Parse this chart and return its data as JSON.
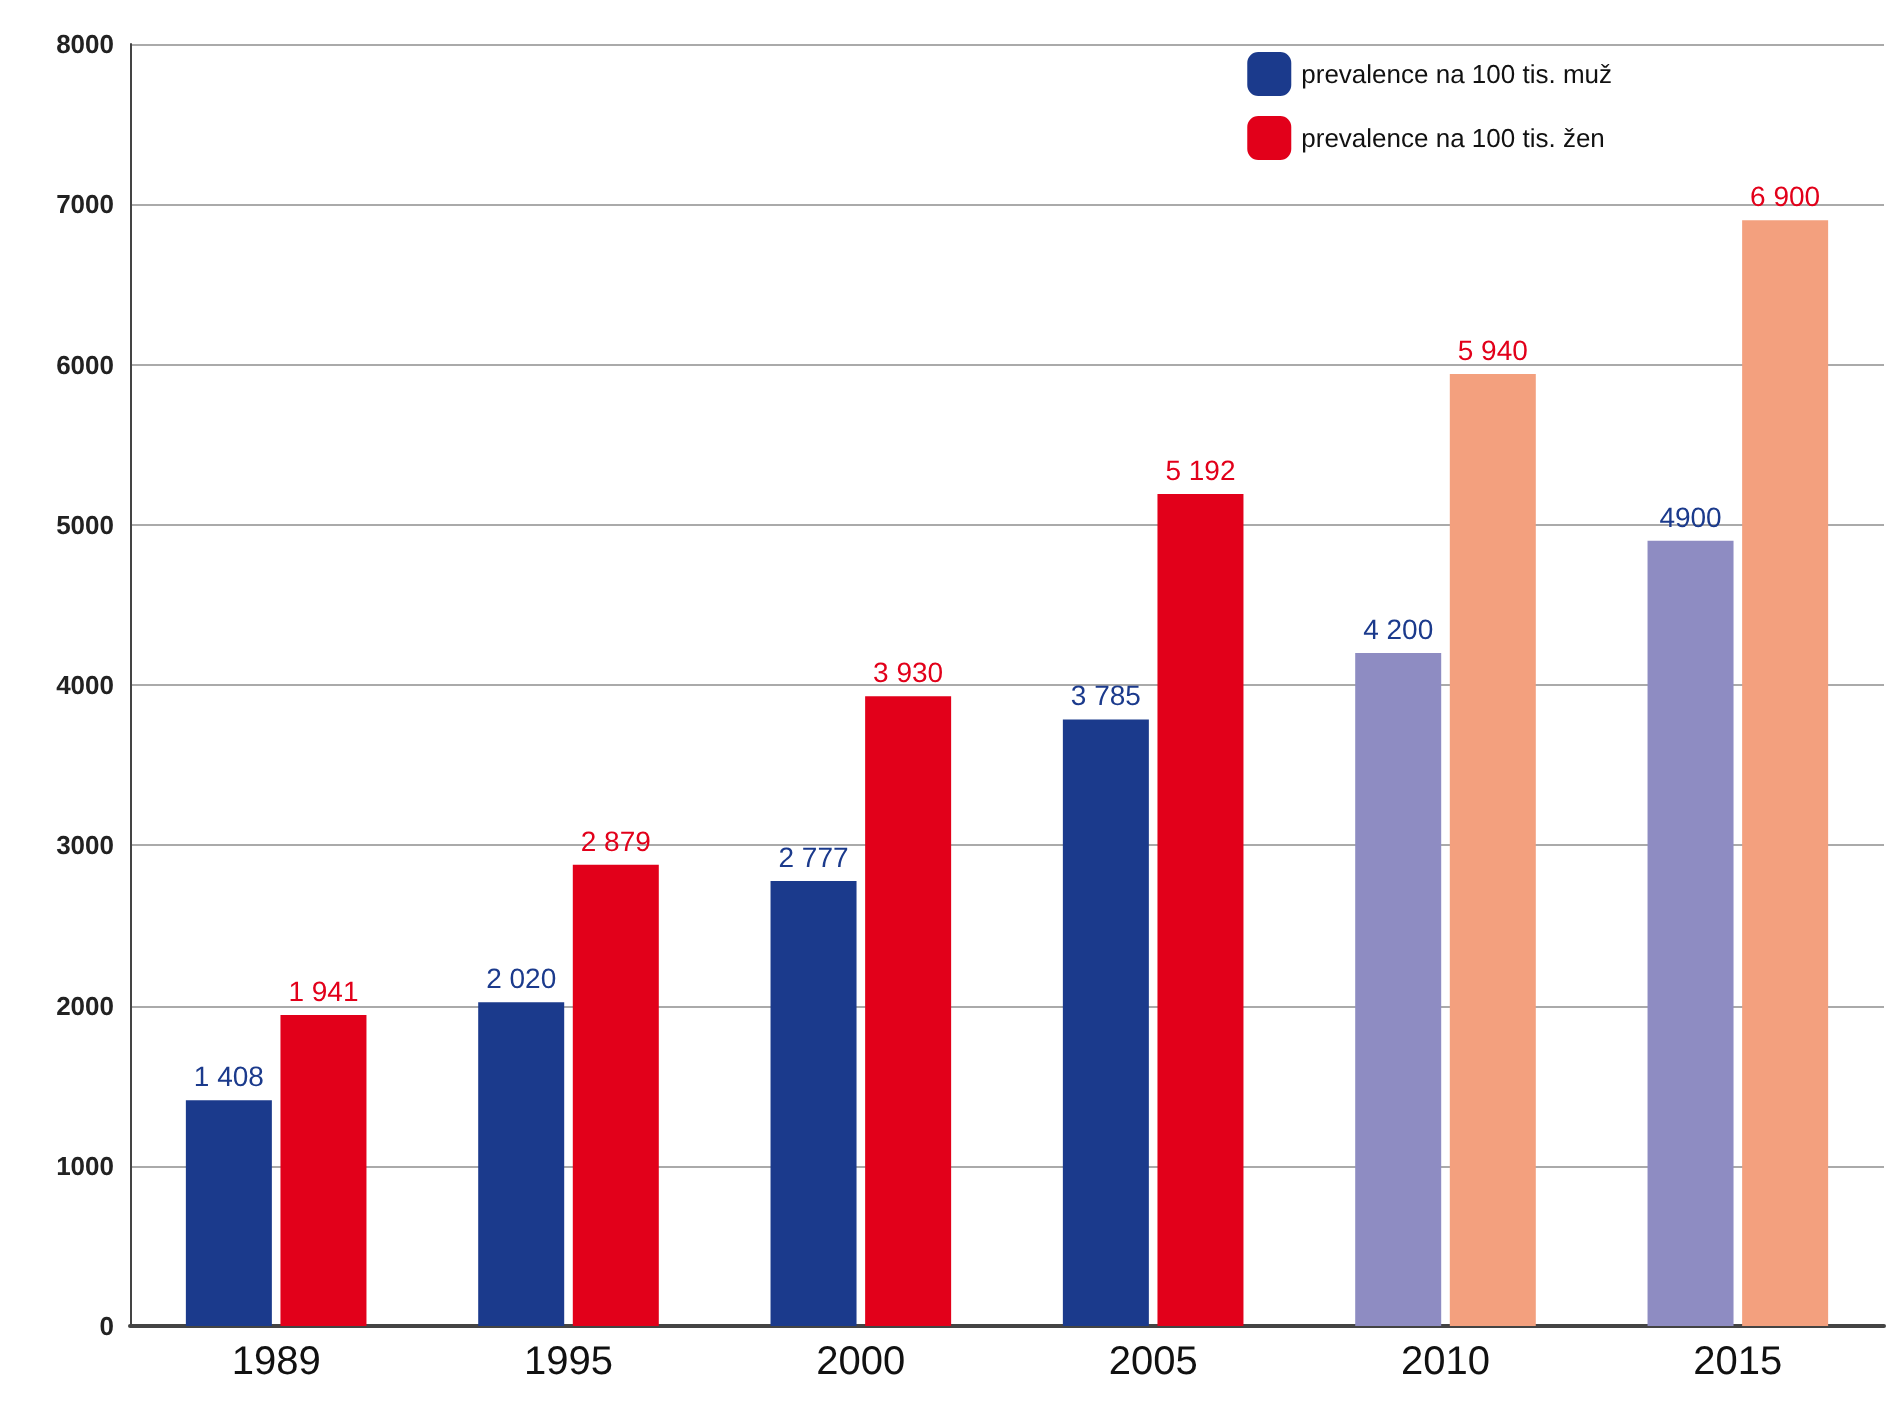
{
  "chart_data": {
    "type": "bar",
    "categories": [
      "1989",
      "1995",
      "2000",
      "2005",
      "2010",
      "2015"
    ],
    "series": [
      {
        "name": "prevalence na 100 tis. muž",
        "color": "#1b3a8c",
        "colors": [
          "#1b3a8c",
          "#1b3a8c",
          "#1b3a8c",
          "#1b3a8c",
          "#8e8cc2",
          "#8e8cc2"
        ],
        "values": [
          1408,
          2020,
          2777,
          3785,
          4200,
          4900
        ],
        "value_labels": [
          "1 408",
          "2 020",
          "2 777",
          "3 785",
          "4 200",
          "4900"
        ]
      },
      {
        "name": "prevalence na 100 tis. žen",
        "color": "#e2001a",
        "colors": [
          "#e2001a",
          "#e2001a",
          "#e2001a",
          "#e2001a",
          "#f3a07e",
          "#f3a07e"
        ],
        "values": [
          1941,
          2879,
          3930,
          5192,
          5940,
          6900
        ],
        "value_labels": [
          "1 941",
          "2 879",
          "3 930",
          "5 192",
          "5 940",
          "6 900"
        ]
      }
    ],
    "ylim": [
      0,
      8000
    ],
    "yticks": [
      0,
      1000,
      2000,
      3000,
      4000,
      5000,
      6000,
      7000,
      8000
    ],
    "grid": "y",
    "legend": "top right"
  }
}
